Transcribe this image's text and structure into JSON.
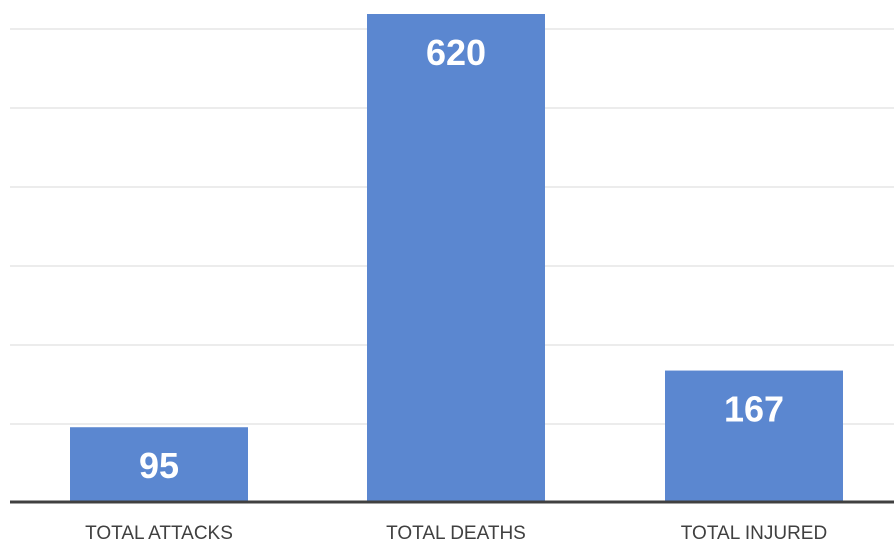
{
  "chart_data": {
    "type": "bar",
    "categories": [
      "TOTAL ATTACKS",
      "TOTAL DEATHS",
      "TOTAL INJURED"
    ],
    "values": [
      95,
      620,
      167
    ],
    "data_labels": [
      "95",
      "620",
      "167"
    ],
    "title": "",
    "xlabel": "",
    "ylabel": "",
    "ylim": [
      0,
      620
    ],
    "grid": true,
    "legend": "none",
    "bar_color": "#5b87d0",
    "grid_color": "#d9d9d9",
    "axis_color": "#404040",
    "label_color": "#ffffff",
    "tick_color": "#404040"
  }
}
